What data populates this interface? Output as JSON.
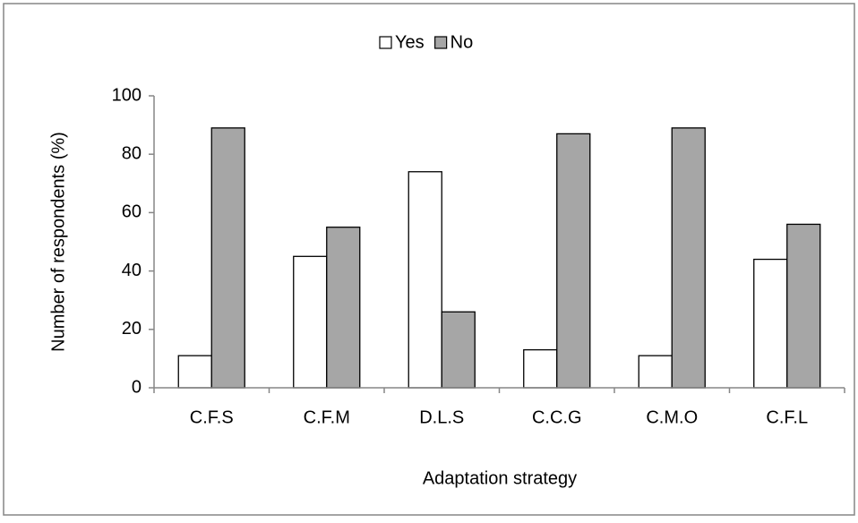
{
  "chart_data": {
    "type": "bar",
    "x_label": "Adaptation strategy",
    "y_label": "Number of respondents (%)",
    "categories": [
      "C.F.S",
      "C.F.M",
      "D.L.S",
      "C.C.G",
      "C.M.O",
      "C.F.L"
    ],
    "series": [
      {
        "name": "Yes",
        "color": "#ffffff",
        "values": [
          11,
          45,
          74,
          13,
          11,
          44
        ]
      },
      {
        "name": "No",
        "color": "#a6a6a6",
        "values": [
          89,
          55,
          26,
          87,
          89,
          56
        ]
      }
    ],
    "ylim": [
      0,
      100
    ],
    "yticks": [
      0,
      20,
      40,
      60,
      80,
      100
    ],
    "legend": "top",
    "grid": false
  }
}
